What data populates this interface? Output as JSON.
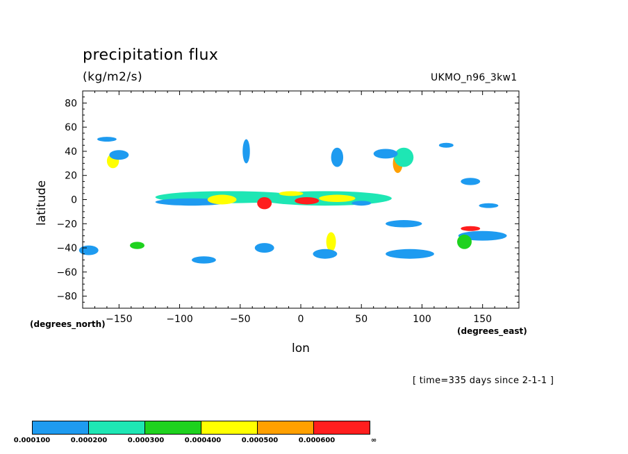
{
  "header": {
    "title": "precipitation flux",
    "units": "(kg/m2/s)",
    "model": "UKMO_n96_3kw1"
  },
  "footer": {
    "time": "[ time=335 days since 2-1-1 ]"
  },
  "chart_data": {
    "type": "heatmap",
    "title": "precipitation flux",
    "subtitle": "(kg/m2/s)",
    "source_label": "UKMO_n96_3kw1",
    "xlabel": "lon",
    "ylabel": "latitude",
    "x_units": "(degrees_east)",
    "y_units": "(degrees_north)",
    "xlim": [
      -180,
      180
    ],
    "ylim": [
      -90,
      90
    ],
    "x_ticks": [
      -150,
      -100,
      -50,
      0,
      50,
      100,
      150
    ],
    "x_tick_labels": [
      "−150",
      "−100",
      "−50",
      "0",
      "50",
      "100",
      "150"
    ],
    "y_ticks": [
      80,
      60,
      40,
      20,
      0,
      -20,
      -40,
      -60,
      -80
    ],
    "y_tick_labels": [
      "80",
      "60",
      "40",
      "20",
      "0",
      "−20",
      "−40",
      "−60",
      "−80"
    ],
    "time_note": "[ time=335 days since 2-1-1 ]",
    "levels": [
      {
        "min_label": "0.000100",
        "color": "#1e9bf0"
      },
      {
        "min_label": "0.000200",
        "color": "#1ee6b4"
      },
      {
        "min_label": "0.000300",
        "color": "#1ed21e"
      },
      {
        "min_label": "0.000400",
        "color": "#ffff00"
      },
      {
        "min_label": "0.000500",
        "color": "#ffa000"
      },
      {
        "min_label": "0.000600",
        "color": "#ff1e1e"
      }
    ],
    "colorbar_end_label": "∞",
    "blobs": [
      {
        "lon": -60,
        "lat": 2,
        "dlon": 60,
        "dlat": 5,
        "level": 2
      },
      {
        "lon": 20,
        "lat": 1,
        "dlon": 55,
        "dlat": 6,
        "level": 2
      },
      {
        "lon": -90,
        "lat": -2,
        "dlon": 30,
        "dlat": 3,
        "level": 1
      },
      {
        "lon": -65,
        "lat": 0,
        "dlon": 12,
        "dlat": 4,
        "level": 4
      },
      {
        "lon": -30,
        "lat": -3,
        "dlon": 6,
        "dlat": 5,
        "level": 6
      },
      {
        "lon": 5,
        "lat": -1,
        "dlon": 10,
        "dlat": 3,
        "level": 6
      },
      {
        "lon": 30,
        "lat": 1,
        "dlon": 15,
        "dlat": 3,
        "level": 4
      },
      {
        "lon": -8,
        "lat": 5,
        "dlon": 10,
        "dlat": 2,
        "level": 4
      },
      {
        "lon": 50,
        "lat": -3,
        "dlon": 8,
        "dlat": 2,
        "level": 1
      },
      {
        "lon": 80,
        "lat": 30,
        "dlon": 4,
        "dlat": 8,
        "level": 5
      },
      {
        "lon": 85,
        "lat": 35,
        "dlon": 8,
        "dlat": 8,
        "level": 2
      },
      {
        "lon": 70,
        "lat": 38,
        "dlon": 10,
        "dlat": 4,
        "level": 1
      },
      {
        "lon": -155,
        "lat": 32,
        "dlon": 5,
        "dlat": 6,
        "level": 4
      },
      {
        "lon": -150,
        "lat": 37,
        "dlon": 8,
        "dlat": 4,
        "level": 1
      },
      {
        "lon": -45,
        "lat": 40,
        "dlon": 3,
        "dlat": 10,
        "level": 1
      },
      {
        "lon": 30,
        "lat": 35,
        "dlon": 5,
        "dlat": 8,
        "level": 1
      },
      {
        "lon": 25,
        "lat": -35,
        "dlon": 4,
        "dlat": 8,
        "level": 4
      },
      {
        "lon": 20,
        "lat": -45,
        "dlon": 10,
        "dlat": 4,
        "level": 1
      },
      {
        "lon": 140,
        "lat": -24,
        "dlon": 8,
        "dlat": 2,
        "level": 6
      },
      {
        "lon": 150,
        "lat": -30,
        "dlon": 20,
        "dlat": 4,
        "level": 1
      },
      {
        "lon": 135,
        "lat": -35,
        "dlon": 6,
        "dlat": 6,
        "level": 3
      },
      {
        "lon": 90,
        "lat": -45,
        "dlon": 20,
        "dlat": 4,
        "level": 1
      },
      {
        "lon": 85,
        "lat": -20,
        "dlon": 15,
        "dlat": 3,
        "level": 1
      },
      {
        "lon": -80,
        "lat": -50,
        "dlon": 10,
        "dlat": 3,
        "level": 1
      },
      {
        "lon": -30,
        "lat": -40,
        "dlon": 8,
        "dlat": 4,
        "level": 1
      },
      {
        "lon": -175,
        "lat": -42,
        "dlon": 8,
        "dlat": 4,
        "level": 1
      },
      {
        "lon": -135,
        "lat": -38,
        "dlon": 6,
        "dlat": 3,
        "level": 3
      },
      {
        "lon": 155,
        "lat": -5,
        "dlon": 8,
        "dlat": 2,
        "level": 1
      },
      {
        "lon": 140,
        "lat": 15,
        "dlon": 8,
        "dlat": 3,
        "level": 1
      },
      {
        "lon": -160,
        "lat": 50,
        "dlon": 8,
        "dlat": 2,
        "level": 1
      },
      {
        "lon": 120,
        "lat": 45,
        "dlon": 6,
        "dlat": 2,
        "level": 1
      }
    ]
  }
}
